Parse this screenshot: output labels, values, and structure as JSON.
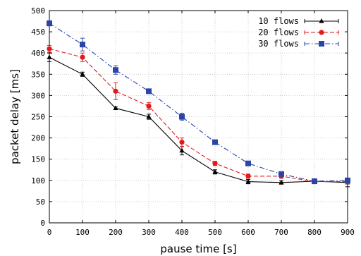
{
  "chart_data": {
    "type": "line",
    "xlabel": "pause time [s]",
    "ylabel": "packet delay [ms]",
    "xlim": [
      0,
      900
    ],
    "ylim": [
      0,
      500
    ],
    "x_ticks": [
      "0",
      "100",
      "200",
      "300",
      "400",
      "500",
      "600",
      "700",
      "800",
      "900"
    ],
    "y_ticks": [
      "0",
      "50",
      "100",
      "150",
      "200",
      "250",
      "300",
      "350",
      "400",
      "450",
      "500"
    ],
    "grid": true,
    "legend_position": "top-right",
    "x": [
      0,
      100,
      200,
      300,
      400,
      500,
      600,
      700,
      800,
      900
    ],
    "series": [
      {
        "name": "10 flows",
        "color": "#000000",
        "marker": "triangle",
        "dash": "solid",
        "values": [
          390,
          350,
          270,
          250,
          170,
          120,
          97,
          95,
          98,
          95
        ],
        "errors": [
          10,
          5,
          3,
          6,
          10,
          5,
          5,
          4,
          4,
          10
        ]
      },
      {
        "name": "20 flows",
        "color": "#e31a1c",
        "marker": "circle",
        "dash": "dashed",
        "values": [
          410,
          390,
          310,
          275,
          190,
          140,
          110,
          110,
          97,
          97
        ],
        "errors": [
          8,
          10,
          20,
          8,
          10,
          5,
          5,
          5,
          5,
          5
        ]
      },
      {
        "name": "30 flows",
        "color": "#2a44a8",
        "marker": "square",
        "dash": "dashdot",
        "values": [
          470,
          420,
          360,
          310,
          250,
          190,
          140,
          115,
          98,
          100
        ],
        "errors": [
          6,
          15,
          10,
          4,
          8,
          3,
          5,
          4,
          4,
          5
        ]
      }
    ]
  }
}
